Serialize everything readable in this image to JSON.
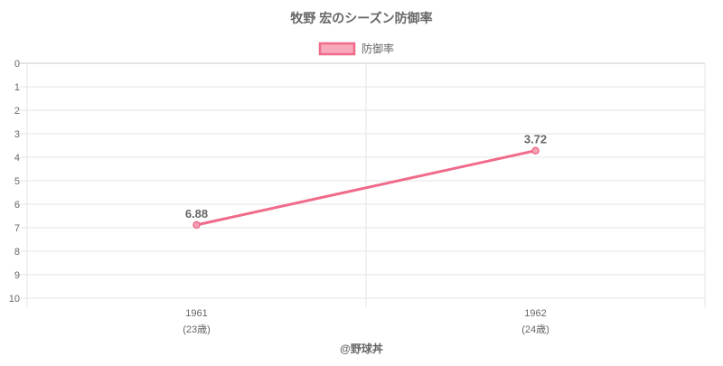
{
  "chart_data": {
    "type": "line",
    "title": "牧野 宏のシーズン防御率",
    "legend": {
      "position": "top",
      "entries": [
        "防御率"
      ]
    },
    "x_categories": [
      {
        "year": "1961",
        "age": "(23歳)"
      },
      {
        "year": "1962",
        "age": "(24歳)"
      }
    ],
    "y_axis": {
      "min": 0,
      "max": 10,
      "step": 1,
      "reversed": true,
      "ticks": [
        "0",
        "1",
        "2",
        "3",
        "4",
        "5",
        "6",
        "7",
        "8",
        "9",
        "10"
      ]
    },
    "series": [
      {
        "name": "防御率",
        "values": [
          6.88,
          3.72
        ],
        "labels": [
          "6.88",
          "3.72"
        ]
      }
    ],
    "grid": true,
    "colors": {
      "line": "#f06a8a",
      "point_fill": "#f4a3b6",
      "legend_fill": "#f7a8bb",
      "grid": "#e6e6e6",
      "axis": "#c8c8c8",
      "text": "#666666",
      "title": "#666666"
    }
  },
  "footer": {
    "credit": "@野球丼"
  }
}
